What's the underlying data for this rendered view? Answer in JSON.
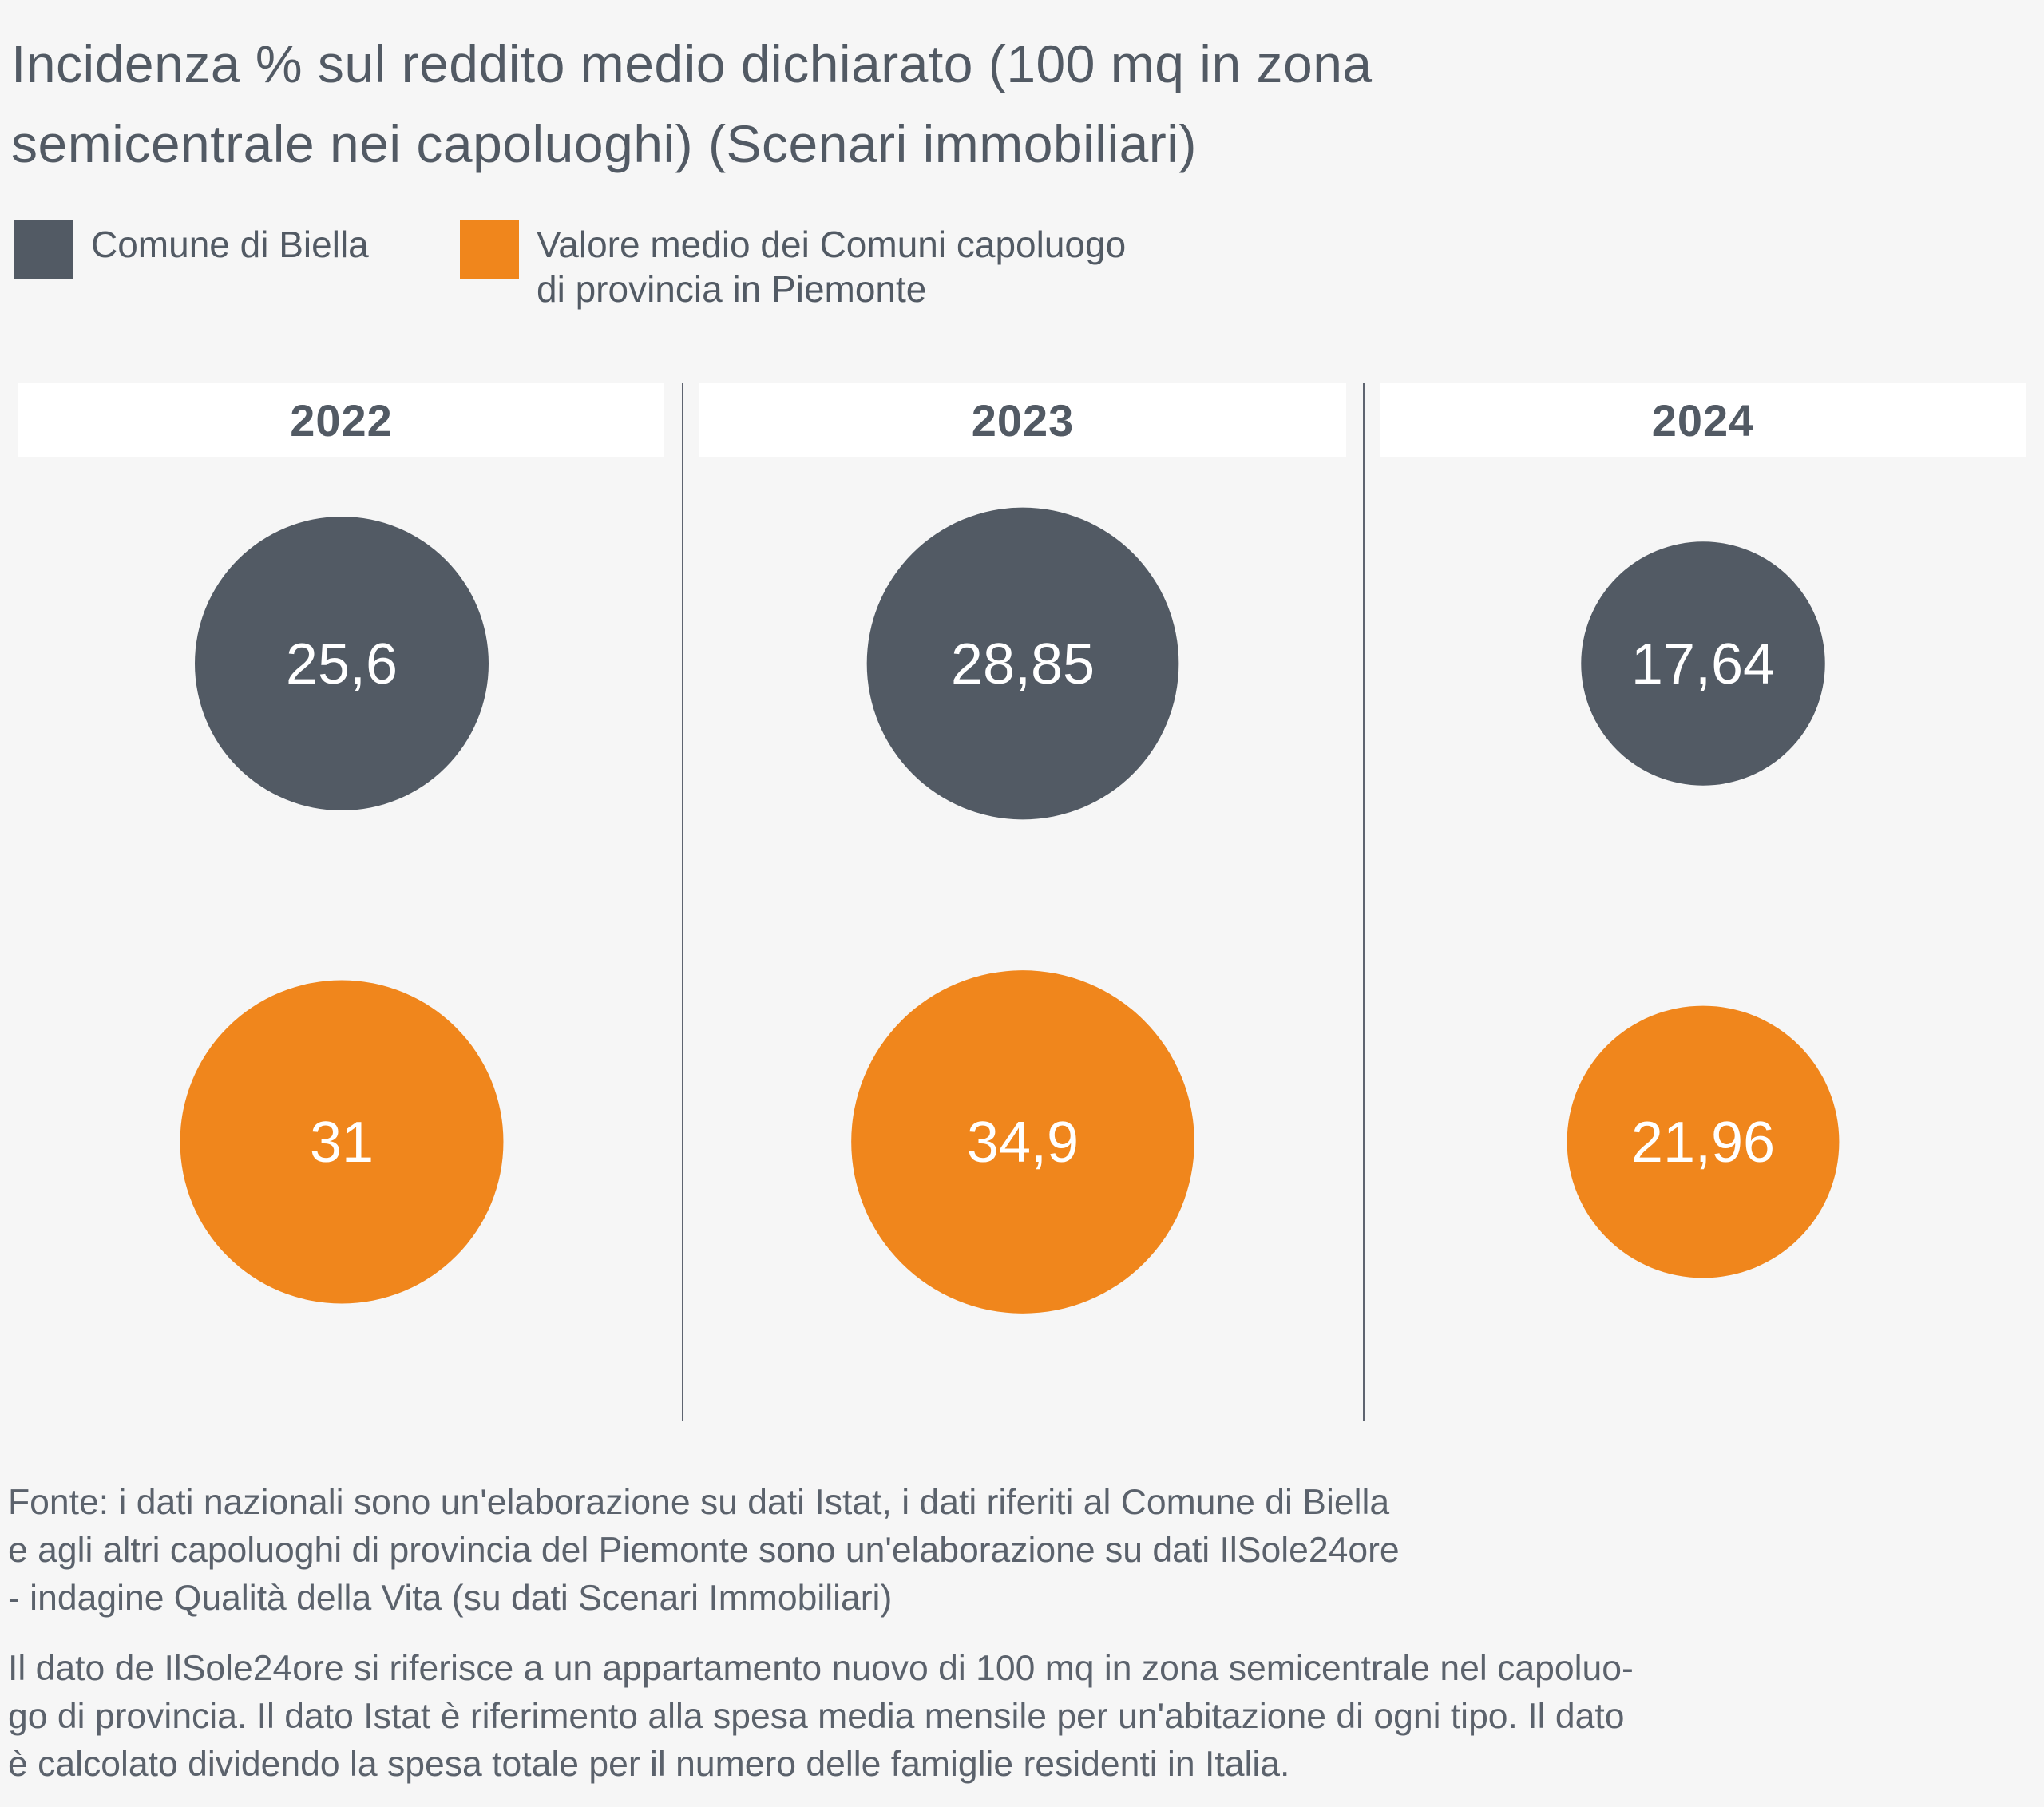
{
  "title": {
    "lines": [
      "Incidenza % sul reddito medio dichiarato (100 mq in zona",
      "semicentrale nei capoluoghi) (Scenari immobiliari)"
    ]
  },
  "colors": {
    "dark": "#525a64",
    "orange": "#f0861c",
    "background": "#f6f6f6",
    "label": "#ffffff"
  },
  "legend": [
    {
      "label_lines": [
        "Comune di Biella"
      ],
      "color": "#525a64"
    },
    {
      "label_lines": [
        "Valore medio dei Comuni capoluogo",
        "di provincia in Piemonte"
      ],
      "color": "#f0861c"
    }
  ],
  "chart_data": {
    "type": "bubble",
    "title": "Incidenza % sul reddito medio dichiarato (100 mq in zona semicentrale nei capoluoghi) (Scenari immobiliari)",
    "categories": [
      "2022",
      "2023",
      "2024"
    ],
    "series": [
      {
        "name": "Comune di Biella",
        "color": "#525a64",
        "values": [
          25.6,
          28.85,
          17.64
        ],
        "labels": [
          "25,6",
          "28,85",
          "17,64"
        ]
      },
      {
        "name": "Valore medio dei Comuni capoluogo di provincia in Piemonte",
        "color": "#f0861c",
        "values": [
          31,
          34.9,
          21.96
        ],
        "labels": [
          "31",
          "34,9",
          "21,96"
        ]
      }
    ],
    "size_encoding": "area proportional to value",
    "legend_position": "top-left"
  },
  "footnotes": [
    {
      "lines": [
        "Fonte: i dati nazionali sono un'elaborazione su dati Istat, i dati riferiti al Comune di Biella",
        "e agli altri capoluoghi di provincia del Piemonte sono un'elaborazione su dati IlSole24ore",
        "- indagine Qualità della Vita (su dati Scenari Immobiliari)"
      ]
    },
    {
      "lines": [
        "Il dato de IlSole24ore si riferisce a un appartamento nuovo di 100 mq in zona semicentrale nel capoluo-",
        "go di provincia. Il dato Istat è riferimento alla spesa media mensile per un'abitazione di ogni tipo. Il dato",
        "è calcolato dividendo la spesa totale per il numero delle famiglie residenti in Italia."
      ]
    }
  ]
}
